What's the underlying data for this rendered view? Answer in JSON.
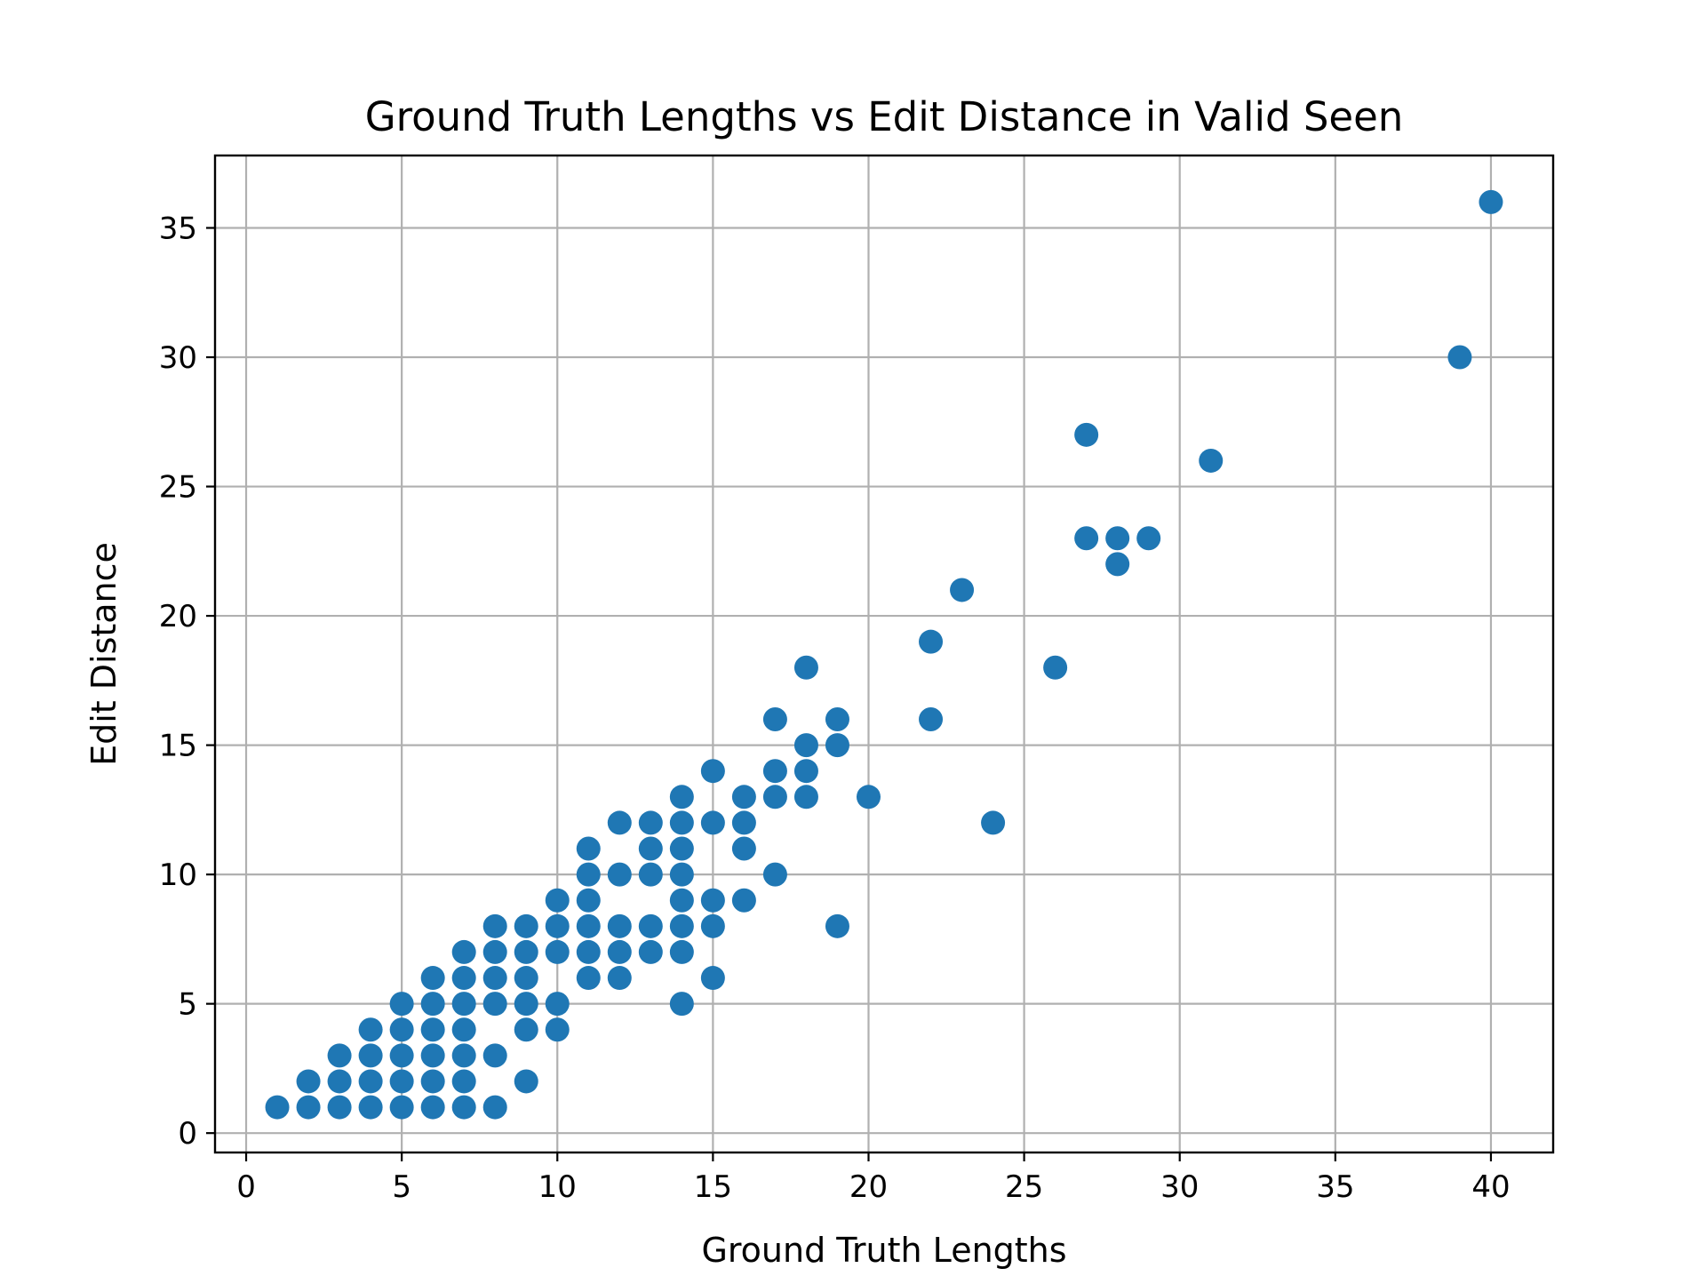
{
  "chart_data": {
    "type": "scatter",
    "title": "Ground Truth Lengths vs Edit Distance in Valid Seen",
    "xlabel": "Ground Truth Lengths",
    "ylabel": "Edit Distance",
    "xlim": [
      -1,
      42
    ],
    "ylim": [
      -0.75,
      37.8
    ],
    "xticks": [
      0,
      5,
      10,
      15,
      20,
      25,
      30,
      35,
      40
    ],
    "yticks": [
      0,
      5,
      10,
      15,
      20,
      25,
      30,
      35
    ],
    "grid": true,
    "marker_color": "#1f77b4",
    "points": [
      [
        1,
        1
      ],
      [
        2,
        1
      ],
      [
        2,
        2
      ],
      [
        3,
        1
      ],
      [
        3,
        2
      ],
      [
        3,
        3
      ],
      [
        4,
        1
      ],
      [
        4,
        2
      ],
      [
        4,
        3
      ],
      [
        4,
        4
      ],
      [
        5,
        1
      ],
      [
        5,
        2
      ],
      [
        5,
        3
      ],
      [
        5,
        4
      ],
      [
        5,
        5
      ],
      [
        6,
        1
      ],
      [
        6,
        2
      ],
      [
        6,
        3
      ],
      [
        6,
        4
      ],
      [
        6,
        5
      ],
      [
        6,
        6
      ],
      [
        7,
        1
      ],
      [
        7,
        2
      ],
      [
        7,
        3
      ],
      [
        7,
        4
      ],
      [
        7,
        5
      ],
      [
        7,
        6
      ],
      [
        7,
        7
      ],
      [
        8,
        1
      ],
      [
        8,
        3
      ],
      [
        8,
        5
      ],
      [
        8,
        6
      ],
      [
        8,
        7
      ],
      [
        8,
        8
      ],
      [
        9,
        2
      ],
      [
        9,
        4
      ],
      [
        9,
        5
      ],
      [
        9,
        6
      ],
      [
        9,
        7
      ],
      [
        9,
        8
      ],
      [
        10,
        4
      ],
      [
        10,
        5
      ],
      [
        10,
        7
      ],
      [
        10,
        8
      ],
      [
        10,
        9
      ],
      [
        11,
        6
      ],
      [
        11,
        7
      ],
      [
        11,
        8
      ],
      [
        11,
        9
      ],
      [
        11,
        10
      ],
      [
        11,
        11
      ],
      [
        12,
        6
      ],
      [
        12,
        7
      ],
      [
        12,
        8
      ],
      [
        12,
        10
      ],
      [
        12,
        12
      ],
      [
        13,
        7
      ],
      [
        13,
        8
      ],
      [
        13,
        10
      ],
      [
        13,
        11
      ],
      [
        13,
        12
      ],
      [
        14,
        5
      ],
      [
        14,
        7
      ],
      [
        14,
        8
      ],
      [
        14,
        9
      ],
      [
        14,
        10
      ],
      [
        14,
        11
      ],
      [
        14,
        12
      ],
      [
        14,
        13
      ],
      [
        15,
        6
      ],
      [
        15,
        8
      ],
      [
        15,
        9
      ],
      [
        15,
        12
      ],
      [
        15,
        14
      ],
      [
        16,
        9
      ],
      [
        16,
        11
      ],
      [
        16,
        12
      ],
      [
        16,
        13
      ],
      [
        17,
        10
      ],
      [
        17,
        13
      ],
      [
        17,
        14
      ],
      [
        17,
        16
      ],
      [
        18,
        13
      ],
      [
        18,
        14
      ],
      [
        18,
        15
      ],
      [
        18,
        18
      ],
      [
        19,
        8
      ],
      [
        19,
        15
      ],
      [
        19,
        16
      ],
      [
        20,
        13
      ],
      [
        22,
        16
      ],
      [
        22,
        19
      ],
      [
        23,
        21
      ],
      [
        24,
        12
      ],
      [
        26,
        18
      ],
      [
        27,
        23
      ],
      [
        27,
        27
      ],
      [
        28,
        22
      ],
      [
        28,
        23
      ],
      [
        29,
        23
      ],
      [
        31,
        26
      ],
      [
        39,
        30
      ],
      [
        40,
        36
      ]
    ]
  }
}
